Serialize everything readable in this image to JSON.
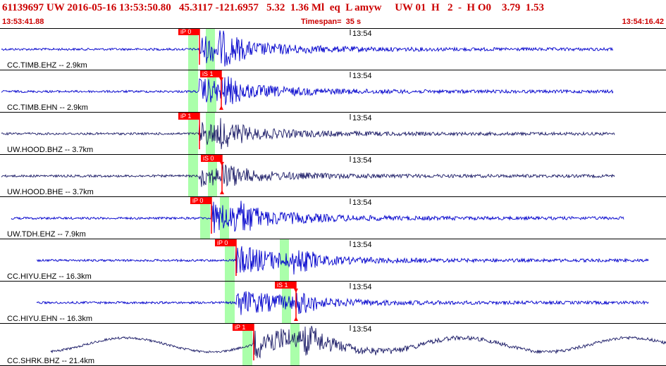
{
  "header": {
    "title": "61139697 UW 2016-05-16 13:53:50.80   45.3117 -121.6957   5.32  1.36 Ml  eq  L amyw     UW 01  H   2  -  H O0    3.79  1.53",
    "start_time": "13:53:41.88",
    "timespan": "Timespan=  35 s",
    "end_time": "13:54:16.42"
  },
  "colors": {
    "header_text": "#cc0000",
    "trace_blue": "#0000cc",
    "trace_dark": "#1a1a66",
    "window_green": "#aaffaa",
    "pick_red": "#ff0000",
    "divider": "#000000"
  },
  "minute_label": "13:54",
  "channels": [
    {
      "label": "CC.TIMB.EHZ -- 2.9km",
      "color": "blue",
      "amp": 20,
      "start": 2,
      "end": 870,
      "onset": 283,
      "pick": {
        "text": "iP 0",
        "side": "left"
      },
      "second_onset": 310
    },
    {
      "label": "CC.TIMB.EHN -- 2.9km",
      "color": "blue",
      "amp": 18,
      "start": 2,
      "end": 870,
      "onset": 283,
      "pick": {
        "text": "iS 1",
        "side": "right"
      },
      "second_onset": 312
    },
    {
      "label": "UW.HOOD.BHZ -- 3.7km",
      "color": "dark",
      "amp": 16,
      "start": 2,
      "end": 872,
      "onset": 283,
      "pick": {
        "text": "iP 1",
        "side": "left"
      },
      "second_onset": 310
    },
    {
      "label": "UW.HOOD.BHE -- 3.7km",
      "color": "dark",
      "amp": 14,
      "start": 2,
      "end": 872,
      "onset": 283,
      "pick": {
        "text": "iS 0",
        "side": "right"
      },
      "second_onset": 313
    },
    {
      "label": "UW.TDH.EHZ -- 7.9km",
      "color": "blue",
      "amp": 22,
      "start": 16,
      "end": 885,
      "onset": 300,
      "pick": {
        "text": "iP 0",
        "side": "left"
      },
      "second_onset": 330
    },
    {
      "label": "CC.HIYU.EHZ -- 16.3km",
      "color": "blue",
      "amp": 20,
      "start": 52,
      "end": 920,
      "onset": 335,
      "pick": {
        "text": "iP 0",
        "side": "left"
      },
      "second_onset": 415
    },
    {
      "label": "CC.HIYU.EHN -- 16.3km",
      "color": "blue",
      "amp": 18,
      "start": 52,
      "end": 920,
      "onset": 335,
      "pick": {
        "text": "iS 1",
        "side": "right"
      },
      "second_onset": 418
    },
    {
      "label": "CC.SHRK.BHZ -- 21.4km",
      "color": "dark",
      "amp": 22,
      "start": 72,
      "end": 945,
      "onset": 360,
      "pick": {
        "text": "iP 1",
        "side": "left"
      },
      "second_onset": 430
    }
  ]
}
